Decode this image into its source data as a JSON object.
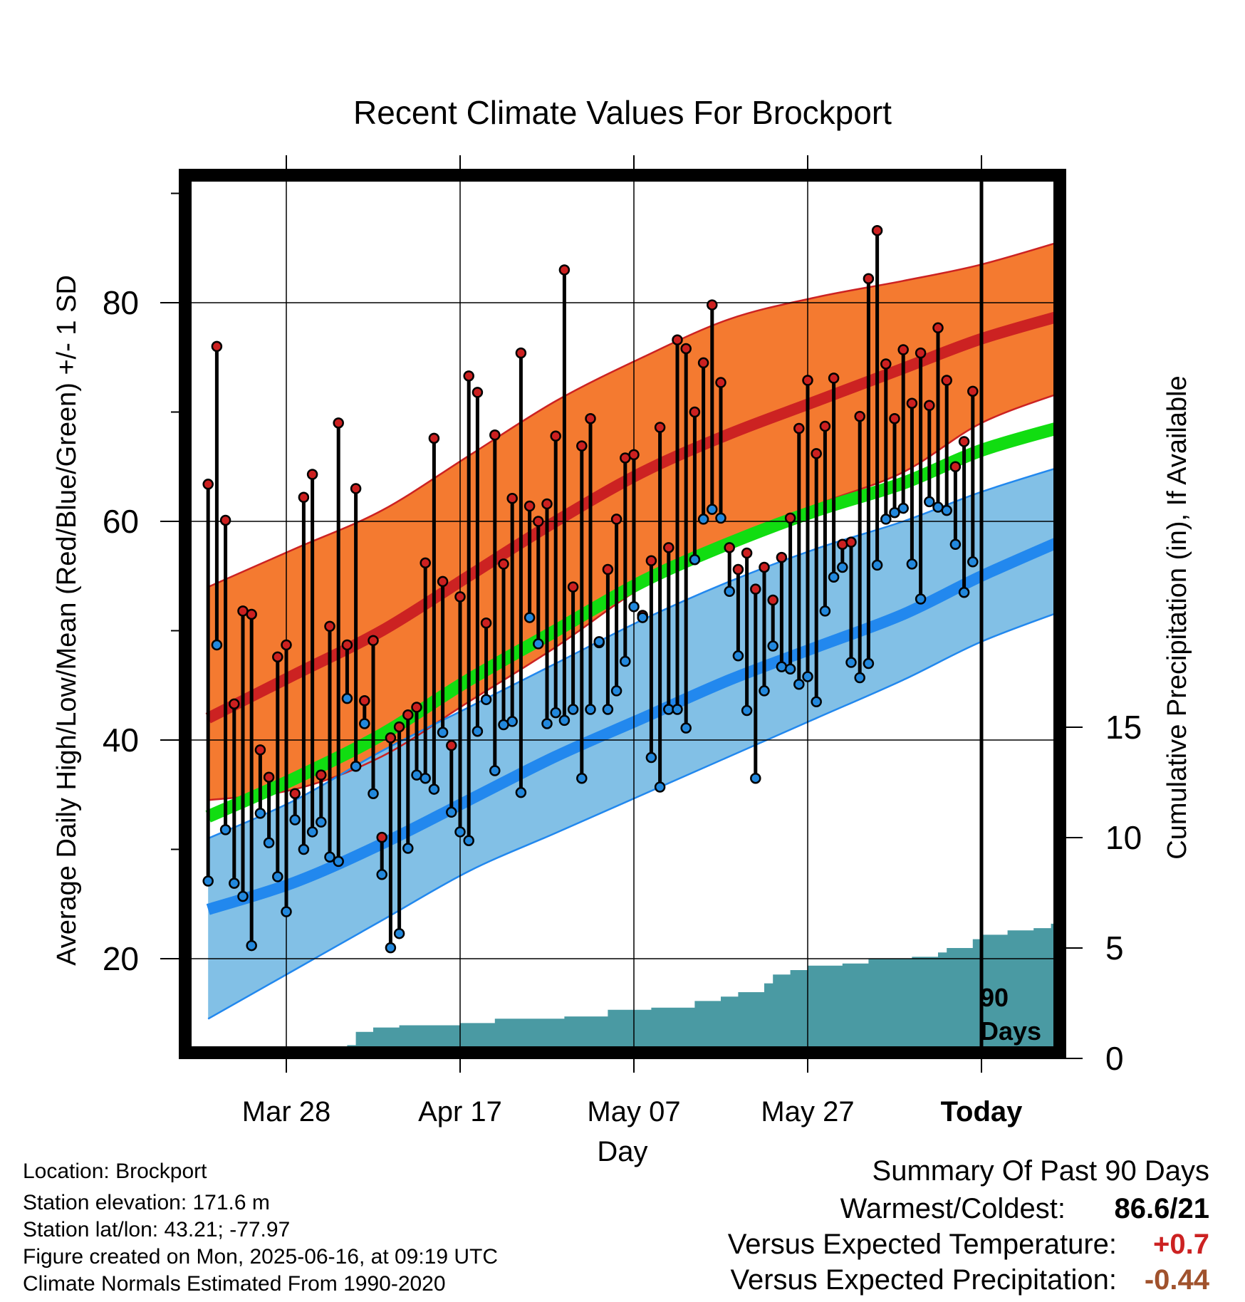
{
  "chart_data": {
    "type": "line",
    "title": "Recent Climate Values For Brockport",
    "xlabel": "Day",
    "ylabel": "Average Daily High/Low/Mean (Red/Blue/Green) +/- 1 SD",
    "y2label": "Cumulative Precipitation (in), If Available",
    "ylim": [
      12,
      92
    ],
    "y2lim": [
      0,
      30
    ],
    "x_ticks": [
      "Mar 28",
      "Apr 17",
      "May 07",
      "May 27",
      "Today"
    ],
    "y_ticks": [
      20,
      40,
      60,
      80
    ],
    "y2_ticks": [
      0,
      5,
      10,
      15
    ],
    "today_marker": {
      "label_line1": "90",
      "label_line2": "Days"
    },
    "normals": {
      "day_offsets": [
        -89,
        -79,
        -69,
        -59,
        -49,
        -39,
        -29,
        -19,
        -9,
        0,
        10
      ],
      "high_mean": [
        42,
        46,
        50,
        55,
        60,
        64.5,
        68,
        71,
        74,
        76.7,
        79
      ],
      "high_plus_sd": [
        54,
        57.5,
        61,
        66,
        71,
        75,
        78.5,
        80.5,
        82,
        83.5,
        85.8
      ],
      "high_minus_sd": [
        34.5,
        35.5,
        38.5,
        43.5,
        48.5,
        54,
        58,
        61.5,
        64.5,
        69,
        72
      ],
      "mean": [
        33,
        36.5,
        40.5,
        45.5,
        50,
        54.5,
        58,
        61,
        63.5,
        66.5,
        68.8
      ],
      "low_mean": [
        24.5,
        27,
        30.5,
        34.5,
        38.5,
        42,
        45.5,
        48.5,
        51.5,
        55,
        58.5
      ],
      "low_plus_sd": [
        31,
        34.5,
        39,
        43,
        47,
        51,
        54.5,
        57.5,
        60,
        62.7,
        65.2
      ],
      "low_minus_sd": [
        14.5,
        19,
        23.5,
        28,
        31.5,
        35,
        38.5,
        42,
        45.5,
        49,
        52
      ]
    },
    "series": [
      {
        "name": "High",
        "color": "#cc2020",
        "values": [
          63.4,
          76,
          60.1,
          43.3,
          51.8,
          51.5,
          39.1,
          36.6,
          47.6,
          48.7,
          35.1,
          62.2,
          64.3,
          36.8,
          50.4,
          69,
          48.7,
          63,
          43.6,
          49.1,
          31.1,
          40.2,
          41.2,
          42.3,
          43,
          56.2,
          67.6,
          54.5,
          39.5,
          53.1,
          73.3,
          71.8,
          50.7,
          67.9,
          56.1,
          62.1,
          75.4,
          61.4,
          60,
          61.6,
          67.8,
          83,
          54,
          66.9,
          69.4,
          48.9,
          55.6,
          60.2,
          65.8,
          66.1,
          51.4,
          56.4,
          68.6,
          57.6,
          76.6,
          75.8,
          70,
          74.5,
          79.8,
          72.7,
          57.6,
          55.6,
          57.1,
          53.8,
          55.8,
          52.8,
          56.7,
          60.3,
          68.5,
          72.9,
          66.2,
          68.7,
          73.1,
          57.9,
          58.1,
          69.6,
          82.2,
          86.6,
          74.4,
          69.4,
          75.7,
          70.8,
          75.4,
          70.6,
          77.7,
          72.9,
          65,
          67.3,
          71.9
        ]
      },
      {
        "name": "Low",
        "color": "#2288dd",
        "values": [
          27.1,
          48.7,
          31.8,
          26.9,
          25.7,
          21.2,
          33.3,
          30.6,
          27.5,
          24.3,
          32.7,
          30,
          31.6,
          32.5,
          29.3,
          28.9,
          43.8,
          37.6,
          41.5,
          35.1,
          27.7,
          21,
          22.3,
          30.1,
          36.8,
          36.5,
          35.5,
          40.7,
          33.4,
          31.6,
          30.8,
          40.8,
          43.7,
          37.2,
          41.4,
          41.7,
          35.2,
          51.2,
          48.8,
          41.5,
          42.5,
          41.8,
          42.8,
          36.5,
          42.8,
          49,
          42.8,
          44.5,
          47.2,
          52.2,
          51.2,
          38.4,
          35.7,
          42.8,
          42.8,
          41.1,
          56.5,
          60.2,
          61.1,
          60.3,
          53.6,
          47.7,
          42.7,
          36.5,
          44.5,
          48.6,
          46.7,
          46.5,
          45.1,
          45.8,
          43.5,
          51.8,
          54.9,
          55.8,
          47.1,
          45.7,
          47,
          56,
          60.2,
          60.8,
          61.2,
          56.1,
          52.9,
          61.8,
          61.3,
          61,
          57.9,
          53.5,
          56.3,
          55.6
        ]
      },
      {
        "name": "Cumulative Precipitation",
        "color": "#4a9aa3",
        "steps": [
          [
            -79,
            0.3
          ],
          [
            -77,
            0.5
          ],
          [
            -73,
            0.6
          ],
          [
            -72,
            1.2
          ],
          [
            -70,
            1.4
          ],
          [
            -67,
            1.5
          ],
          [
            -60,
            1.6
          ],
          [
            -56,
            1.8
          ],
          [
            -48,
            1.9
          ],
          [
            -43,
            2.2
          ],
          [
            -38,
            2.3
          ],
          [
            -33,
            2.6
          ],
          [
            -30,
            2.8
          ],
          [
            -28,
            3.0
          ],
          [
            -25,
            3.4
          ],
          [
            -24,
            3.8
          ],
          [
            -22,
            4.0
          ],
          [
            -20,
            4.2
          ],
          [
            -16,
            4.3
          ],
          [
            -13,
            4.5
          ],
          [
            -8,
            4.6
          ],
          [
            -5,
            4.8
          ],
          [
            -4,
            5.0
          ],
          [
            -1,
            5.4
          ],
          [
            0,
            5.6
          ],
          [
            3,
            5.8
          ],
          [
            6,
            5.9
          ],
          [
            8,
            6.1
          ],
          [
            10,
            6.4
          ],
          [
            13,
            6.6
          ],
          [
            17,
            6.8
          ],
          [
            20,
            7.2
          ],
          [
            23,
            7.5
          ],
          [
            25,
            8.0
          ],
          [
            29,
            8.3
          ],
          [
            32,
            8.6
          ],
          [
            36,
            9.1
          ],
          [
            40,
            9.1
          ]
        ]
      }
    ]
  },
  "info": {
    "location": "Location: Brockport",
    "elevation": "Station elevation: 171.6 m",
    "latlon": "Station lat/lon: 43.21; -77.97",
    "created": "Figure created on Mon, 2025-06-16, at 09:19 UTC",
    "normals_source": "Climate Normals Estimated From 1990-2020"
  },
  "summary": {
    "title": "Summary Of Past 90 Days",
    "warm_cold_label": "Warmest/Coldest:",
    "warm_cold_value": "86.6/21",
    "temp_label": "Versus Expected Temperature:",
    "temp_value": "+0.7",
    "temp_color": "#cc2222",
    "precip_label": "Versus Expected Precipitation:",
    "precip_value": "-0.44",
    "precip_color": "#a0522d"
  }
}
